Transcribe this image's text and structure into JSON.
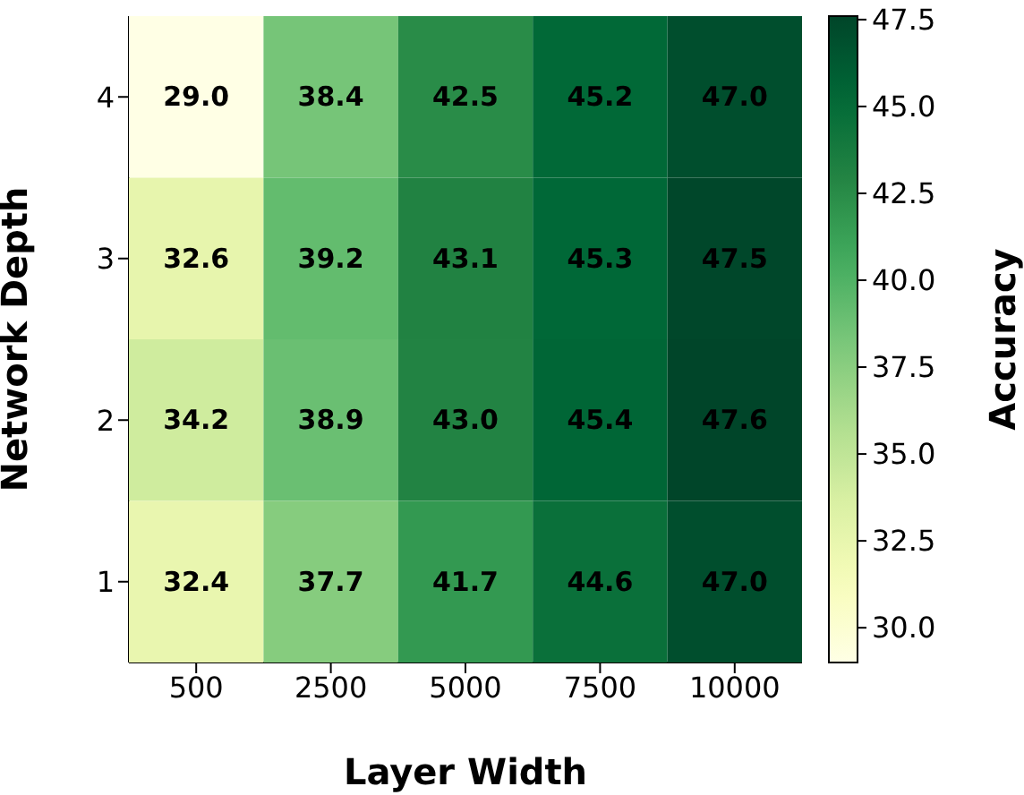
{
  "chart_data": {
    "type": "heatmap",
    "xlabel": "Layer Width",
    "ylabel": "Network Depth",
    "clabel": "Accuracy",
    "categories": [
      "500",
      "2500",
      "5000",
      "7500",
      "10000"
    ],
    "y_categories": [
      "4",
      "3",
      "2",
      "1"
    ],
    "cells": [
      [
        29.0,
        38.4,
        42.5,
        45.2,
        47.0
      ],
      [
        32.6,
        39.2,
        43.1,
        45.3,
        47.5
      ],
      [
        34.2,
        38.9,
        43.0,
        45.4,
        47.6
      ],
      [
        32.4,
        37.7,
        41.7,
        44.6,
        47.0
      ]
    ],
    "cell_labels": [
      [
        "29.0",
        "38.4",
        "42.5",
        "45.2",
        "47.0"
      ],
      [
        "32.6",
        "39.2",
        "43.1",
        "45.3",
        "47.5"
      ],
      [
        "34.2",
        "38.9",
        "43.0",
        "45.4",
        "47.6"
      ],
      [
        "32.4",
        "37.7",
        "41.7",
        "44.6",
        "47.0"
      ]
    ],
    "clim": [
      29.0,
      47.6
    ],
    "cticks": [
      {
        "value": 30,
        "label": "30.0"
      },
      {
        "value": 32.5,
        "label": "32.5"
      },
      {
        "value": 35,
        "label": "35.0"
      },
      {
        "value": 37.5,
        "label": "37.5"
      },
      {
        "value": 40,
        "label": "40.0"
      },
      {
        "value": 42.5,
        "label": "42.5"
      },
      {
        "value": 45,
        "label": "45.0"
      },
      {
        "value": 47.5,
        "label": "47.5"
      }
    ]
  }
}
